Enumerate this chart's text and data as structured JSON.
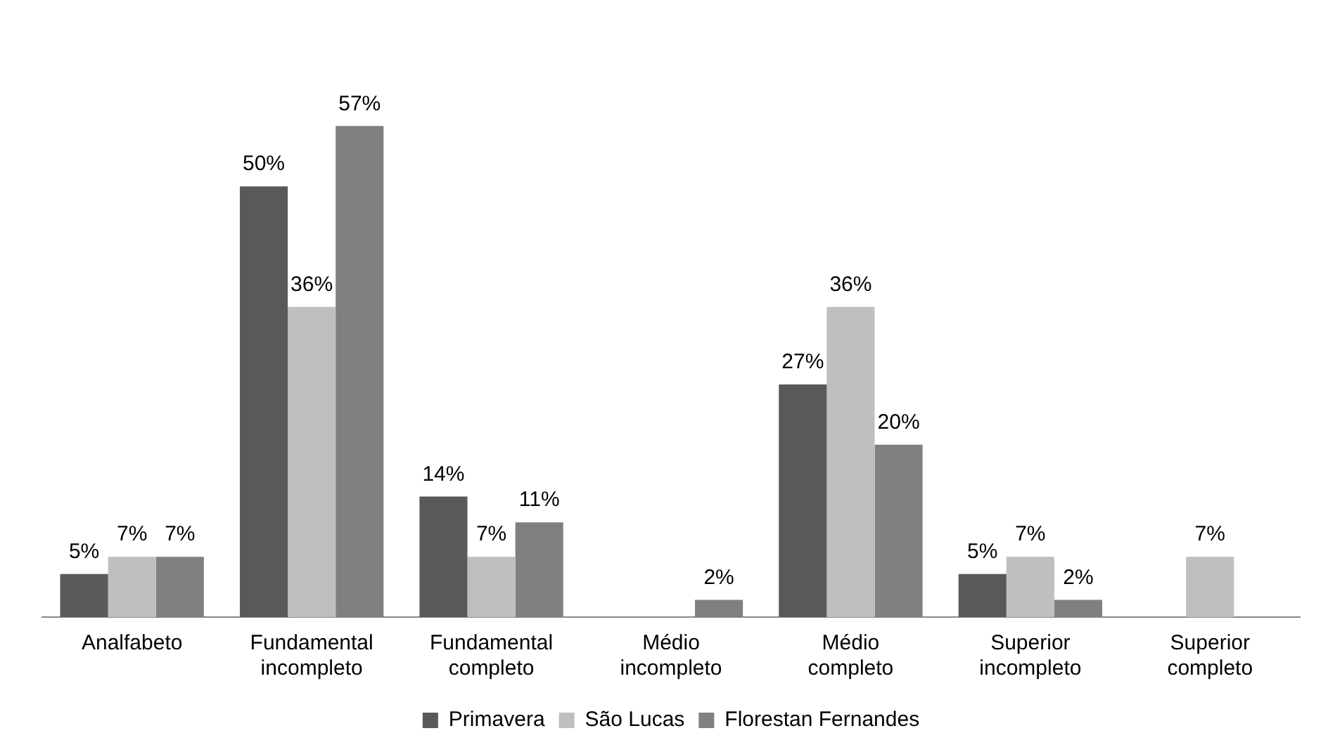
{
  "chart_data": {
    "type": "bar",
    "categories": [
      "Analfabeto",
      "Fundamental incompleto",
      "Fundamental completo",
      "Médio incompleto",
      "Médio completo",
      "Superior incompleto",
      "Superior completo"
    ],
    "series": [
      {
        "name": "Primavera",
        "color": "#595959",
        "values": [
          5,
          50,
          14,
          null,
          27,
          5,
          null
        ],
        "value_labels": [
          "5%",
          "50%",
          "14%",
          null,
          "27%",
          "5%",
          null
        ]
      },
      {
        "name": "São Lucas",
        "color": "#bfbfbf",
        "values": [
          7,
          36,
          7,
          null,
          36,
          7,
          7
        ],
        "value_labels": [
          "7%",
          "36%",
          "7%",
          null,
          "36%",
          "7%",
          "7%"
        ]
      },
      {
        "name": "Florestan Fernandes",
        "color": "#808080",
        "values": [
          7,
          57,
          11,
          2,
          20,
          2,
          null
        ],
        "value_labels": [
          "7%",
          "57%",
          "11%",
          "2%",
          "20%",
          "2%",
          null
        ]
      }
    ],
    "grid": false,
    "legend": "bottom",
    "tick_labels": "x"
  }
}
